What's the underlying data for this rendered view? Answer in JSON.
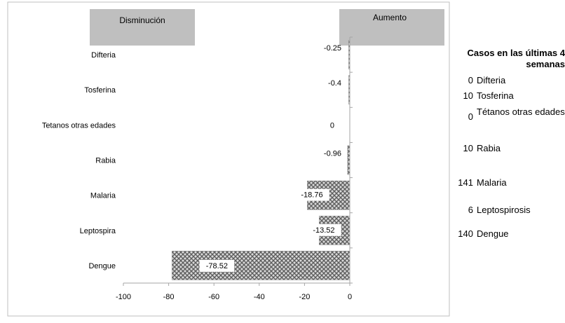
{
  "chart_data": {
    "type": "bar",
    "orientation": "horizontal",
    "categories": [
      "Difteria",
      "Tosferina",
      "Tetanos otras edades",
      "Rabia",
      "Malaria",
      "Leptospira",
      "Dengue"
    ],
    "values": [
      -0.25,
      -0.4,
      0,
      -0.96,
      -18.76,
      -13.52,
      -78.52
    ],
    "data_labels": [
      "-0.25",
      "-0.4",
      "0",
      "-0.96",
      "-18.76",
      "-13.52",
      "-78.52"
    ],
    "xlim": [
      -100,
      0
    ],
    "xticks": [
      "-100",
      "-80",
      "-60",
      "-40",
      "-20",
      "0"
    ],
    "grid": false,
    "header_left": "Disminución",
    "header_right": "Aumento",
    "bar_pattern": "crosshatch",
    "colors": {
      "bar_dark": "#6b6b6b",
      "bar_light": "#d9d9d9",
      "header_fill": "#bfbfbf",
      "axis": "#a6a6a6",
      "frame": "#bfbfbf"
    }
  },
  "side_table": {
    "title": "Casos en las últimas 4 semanas",
    "rows": [
      {
        "count": "0",
        "name": "Difteria"
      },
      {
        "count": "10",
        "name": "Tosferina"
      },
      {
        "count": "0",
        "name": "Tétanos otras edades"
      },
      {
        "count": "10",
        "name": "Rabia"
      },
      {
        "count": "141",
        "name": "Malaria"
      },
      {
        "count": "6",
        "name": "Leptospirosis"
      },
      {
        "count": "140",
        "name": "Dengue"
      }
    ]
  }
}
